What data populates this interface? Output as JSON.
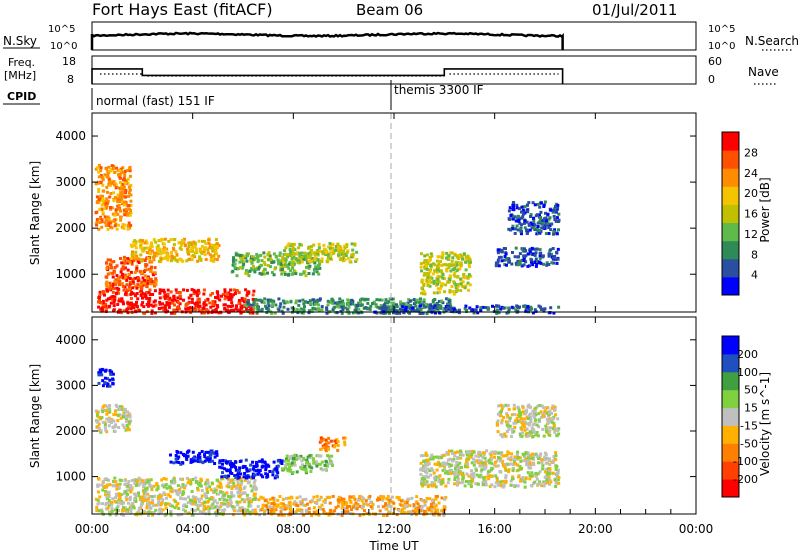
{
  "header": {
    "title": "Fort Hays East (fitACF)",
    "beam": "Beam 06",
    "date": "01/Jul/2011"
  },
  "status_panels": {
    "nsky_label": "N.Sky",
    "nsky_ticks": [
      "10^5",
      "10^0"
    ],
    "nsearch_label": "N.Search",
    "nsearch_ticks": [
      "10^5",
      "10^0"
    ],
    "freq_label": "Freq.",
    "freq_unit": "[MHz]",
    "freq_ticks": [
      "18",
      "8"
    ],
    "nave_label": "Nave",
    "nave_ticks": [
      "60",
      "0"
    ],
    "cpid_label": "CPID",
    "cpid_modes": [
      {
        "label": "normal (fast) 151 IF",
        "start_hour": 0
      },
      {
        "label": "themis 3300 IF",
        "start_hour": 12
      }
    ],
    "freq_schedule": [
      {
        "start_hour": 0,
        "end_hour": 2.0,
        "freq_mhz": 14
      },
      {
        "start_hour": 2.0,
        "end_hour": 14.0,
        "freq_mhz": 11
      },
      {
        "start_hour": 14.0,
        "end_hour": 18.7,
        "freq_mhz": 14
      }
    ],
    "data_end_hour": 18.7
  },
  "chart_data": [
    {
      "type": "heatmap",
      "name": "power-panel",
      "ylabel": "Slant Range [km]",
      "yticks": [
        "4000",
        "3000",
        "2000",
        "1000"
      ],
      "ylim": [
        180,
        4500
      ],
      "xlim": [
        0,
        24
      ],
      "colorbar_label": "Power [dB]",
      "colorbar_ticks": [
        "28",
        "24",
        "20",
        "16",
        "12",
        "8",
        "4"
      ],
      "colors": [
        "#0000ff",
        "#2a4fa0",
        "#2e8a57",
        "#5fba4a",
        "#c0c000",
        "#f5c400",
        "#ff8c00",
        "#ff5000",
        "#ff0000"
      ],
      "echo_regions": [
        {
          "t0": 0.2,
          "t1": 6.5,
          "r0": 180,
          "r1": 700,
          "level": 8
        },
        {
          "t0": 0.5,
          "t1": 2.5,
          "r0": 700,
          "r1": 1400,
          "level": 7
        },
        {
          "t0": 0.1,
          "t1": 1.5,
          "r0": 2000,
          "r1": 3400,
          "level": 6
        },
        {
          "t0": 1.5,
          "t1": 5.0,
          "r0": 1300,
          "r1": 1800,
          "level": 5
        },
        {
          "t0": 5.5,
          "t1": 9.0,
          "r0": 1000,
          "r1": 1500,
          "level": 3
        },
        {
          "t0": 7.5,
          "t1": 10.5,
          "r0": 1300,
          "r1": 1700,
          "level": 4
        },
        {
          "t0": 6.0,
          "t1": 14.5,
          "r0": 180,
          "r1": 500,
          "level": 2
        },
        {
          "t0": 13.0,
          "t1": 15.0,
          "r0": 600,
          "r1": 1500,
          "level": 4
        },
        {
          "t0": 11.0,
          "t1": 18.5,
          "r0": 180,
          "r1": 350,
          "level": 1
        },
        {
          "t0": 16.0,
          "t1": 18.5,
          "r0": 1200,
          "r1": 1600,
          "level": 1
        },
        {
          "t0": 16.5,
          "t1": 18.5,
          "r0": 1900,
          "r1": 2600,
          "level": 1
        }
      ]
    },
    {
      "type": "heatmap",
      "name": "velocity-panel",
      "ylabel": "Slant Range [km]",
      "yticks": [
        "4000",
        "3000",
        "2000",
        "1000"
      ],
      "ylim": [
        180,
        4500
      ],
      "xlim": [
        0,
        24
      ],
      "xticks": [
        "00:00",
        "04:00",
        "08:00",
        "12:00",
        "16:00",
        "20:00",
        "00:00"
      ],
      "xlabel": "Time UT",
      "colorbar_label": "Velocity [m s^-1]",
      "colorbar_ticks": [
        "200",
        "100",
        "50",
        "15",
        "-15",
        "-50",
        "-100",
        "-200"
      ],
      "colors": [
        "#ff0000",
        "#ff4000",
        "#ff8000",
        "#ffb000",
        "#bfbfbf",
        "#80d040",
        "#40a040",
        "#2050c0",
        "#0000ff"
      ],
      "echo_regions": [
        {
          "t0": 0.1,
          "t1": 6.5,
          "r0": 180,
          "r1": 1000,
          "level": 4
        },
        {
          "t0": 0.1,
          "t1": 1.5,
          "r0": 2000,
          "r1": 2600,
          "level": 4
        },
        {
          "t0": 0.2,
          "t1": 0.8,
          "r0": 3000,
          "r1": 3400,
          "level": 8
        },
        {
          "t0": 3.0,
          "t1": 5.0,
          "r0": 1300,
          "r1": 1600,
          "level": 8
        },
        {
          "t0": 5.0,
          "t1": 7.5,
          "r0": 1000,
          "r1": 1400,
          "level": 8
        },
        {
          "t0": 7.5,
          "t1": 9.5,
          "r0": 1100,
          "r1": 1500,
          "level": 5
        },
        {
          "t0": 9.0,
          "t1": 10.0,
          "r0": 1600,
          "r1": 1900,
          "level": 2
        },
        {
          "t0": 6.5,
          "t1": 14.0,
          "r0": 180,
          "r1": 600,
          "level": 3
        },
        {
          "t0": 13.0,
          "t1": 18.5,
          "r0": 800,
          "r1": 1600,
          "level": 4
        },
        {
          "t0": 16.0,
          "t1": 18.5,
          "r0": 1900,
          "r1": 2600,
          "level": 4
        }
      ]
    }
  ]
}
